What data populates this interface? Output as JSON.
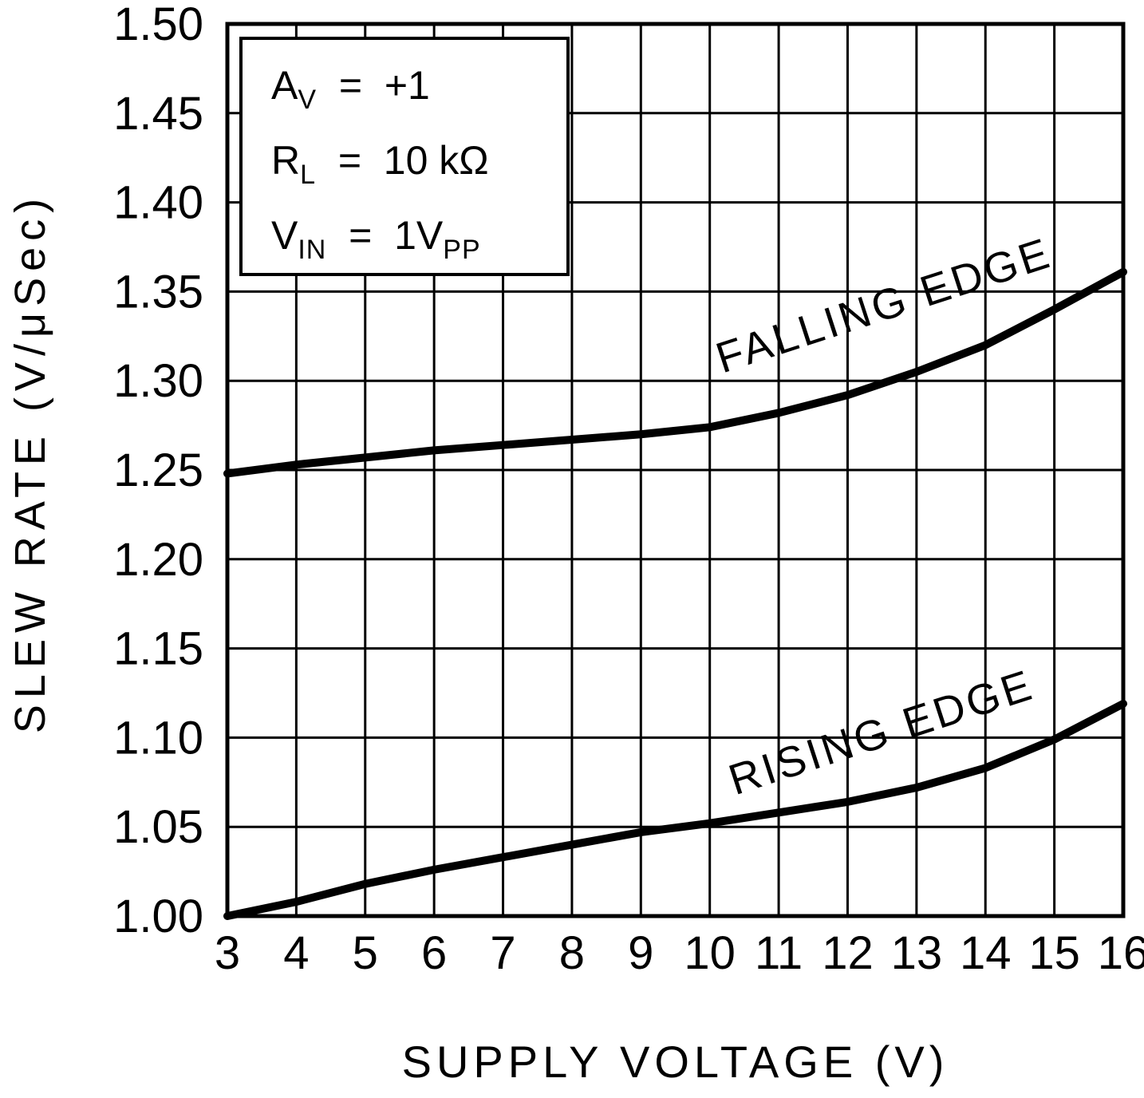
{
  "chart_data": {
    "type": "line",
    "x": [
      3,
      4,
      5,
      6,
      7,
      8,
      9,
      10,
      11,
      12,
      13,
      14,
      15,
      16
    ],
    "series": [
      {
        "name": "FALLING EDGE",
        "values": [
          1.248,
          1.253,
          1.257,
          1.261,
          1.264,
          1.267,
          1.27,
          1.274,
          1.282,
          1.292,
          1.305,
          1.32,
          1.34,
          1.361
        ]
      },
      {
        "name": "RISING EDGE",
        "values": [
          1.0,
          1.008,
          1.018,
          1.026,
          1.033,
          1.04,
          1.047,
          1.052,
          1.058,
          1.064,
          1.072,
          1.083,
          1.099,
          1.119
        ]
      }
    ],
    "xlabel": "SUPPLY VOLTAGE (V)",
    "ylabel": "SLEW RATE (V/μSec)",
    "xlim": [
      3,
      16
    ],
    "ylim": [
      1.0,
      1.5
    ],
    "x_ticks": [
      3,
      4,
      5,
      6,
      7,
      8,
      9,
      10,
      11,
      12,
      13,
      14,
      15,
      16
    ],
    "y_ticks": [
      "1.00",
      "1.05",
      "1.10",
      "1.15",
      "1.20",
      "1.25",
      "1.30",
      "1.35",
      "1.40",
      "1.45",
      "1.50"
    ],
    "grid": true,
    "legend_position": "inline-curve-labels",
    "line_color": "#000000",
    "grid_color": "#000000"
  },
  "conditions": [
    {
      "pre": "A",
      "sub": "V",
      "post": "  =  +1"
    },
    {
      "pre": "R",
      "sub": "L",
      "post": "  =  10 kΩ"
    },
    {
      "pre": "V",
      "sub": "IN",
      "post": "  =  1V",
      "sub2": "PP"
    }
  ]
}
